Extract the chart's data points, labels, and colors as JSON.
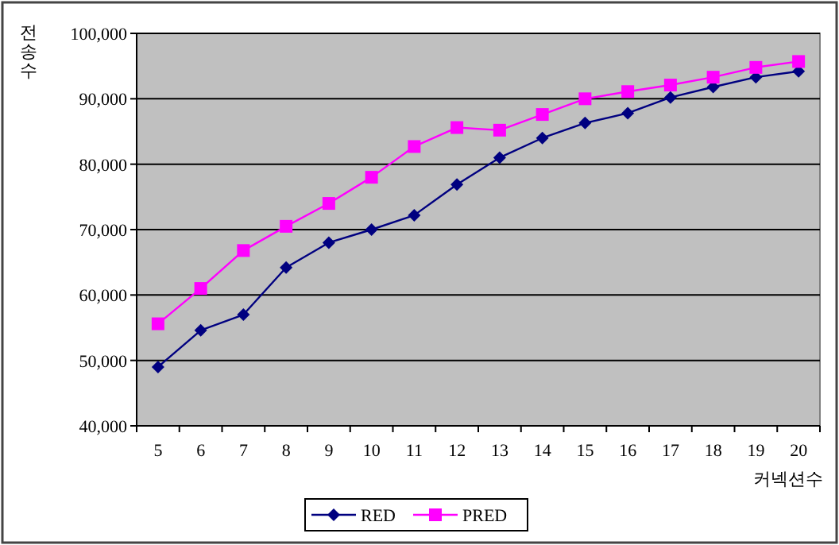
{
  "chart_data": {
    "type": "line",
    "xlabel": "커넥션수",
    "ylabel": "전송수",
    "categories": [
      "5",
      "6",
      "7",
      "8",
      "9",
      "10",
      "11",
      "12",
      "13",
      "14",
      "15",
      "16",
      "17",
      "18",
      "19",
      "20"
    ],
    "series": [
      {
        "name": "RED",
        "color": "#000080",
        "marker": "diamond",
        "values": [
          49000,
          54600,
          57000,
          64200,
          68000,
          70000,
          72200,
          76900,
          81000,
          84000,
          86300,
          87800,
          90200,
          91800,
          93300,
          94200
        ]
      },
      {
        "name": "PRED",
        "color": "#ff00ff",
        "marker": "square",
        "values": [
          55600,
          61000,
          66800,
          70500,
          74000,
          78000,
          82700,
          85600,
          85200,
          87600,
          90000,
          91100,
          92100,
          93300,
          94800,
          95700
        ]
      }
    ],
    "ylim": [
      40000,
      100000
    ],
    "yticks": [
      {
        "value": 40000,
        "label": "40,000"
      },
      {
        "value": 50000,
        "label": "50,000"
      },
      {
        "value": 60000,
        "label": "60,000"
      },
      {
        "value": 70000,
        "label": "70,000"
      },
      {
        "value": 80000,
        "label": "80,000"
      },
      {
        "value": 90000,
        "label": "90,000"
      },
      {
        "value": 100000,
        "label": "100,000"
      }
    ],
    "grid": "y",
    "legend": "bottom"
  }
}
